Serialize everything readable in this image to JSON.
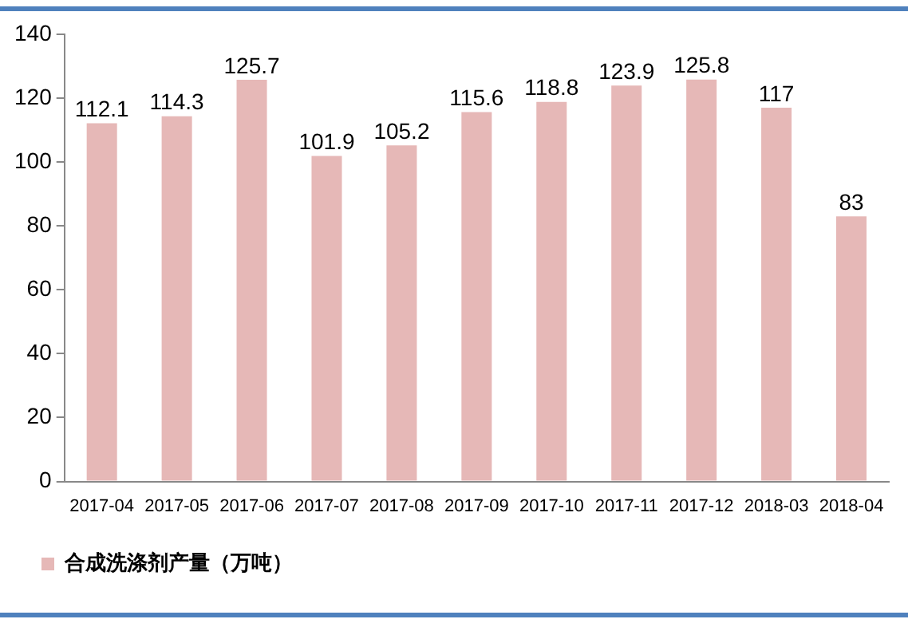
{
  "chart_data": {
    "type": "bar",
    "categories": [
      "2017-04",
      "2017-05",
      "2017-06",
      "2017-07",
      "2017-08",
      "2017-09",
      "2017-10",
      "2017-11",
      "2017-12",
      "2018-03",
      "2018-04"
    ],
    "series": [
      {
        "name": "合成洗涤剂产量（万吨）",
        "color": "#e6b8b7",
        "values": [
          112.1,
          114.3,
          125.7,
          101.9,
          105.2,
          115.6,
          118.8,
          123.9,
          125.8,
          117,
          83
        ]
      }
    ],
    "ylim": [
      0,
      140
    ],
    "yticks": [
      0,
      20,
      40,
      60,
      80,
      100,
      120,
      140
    ],
    "grid": false,
    "legend": "bottom left",
    "data_labels": true
  }
}
